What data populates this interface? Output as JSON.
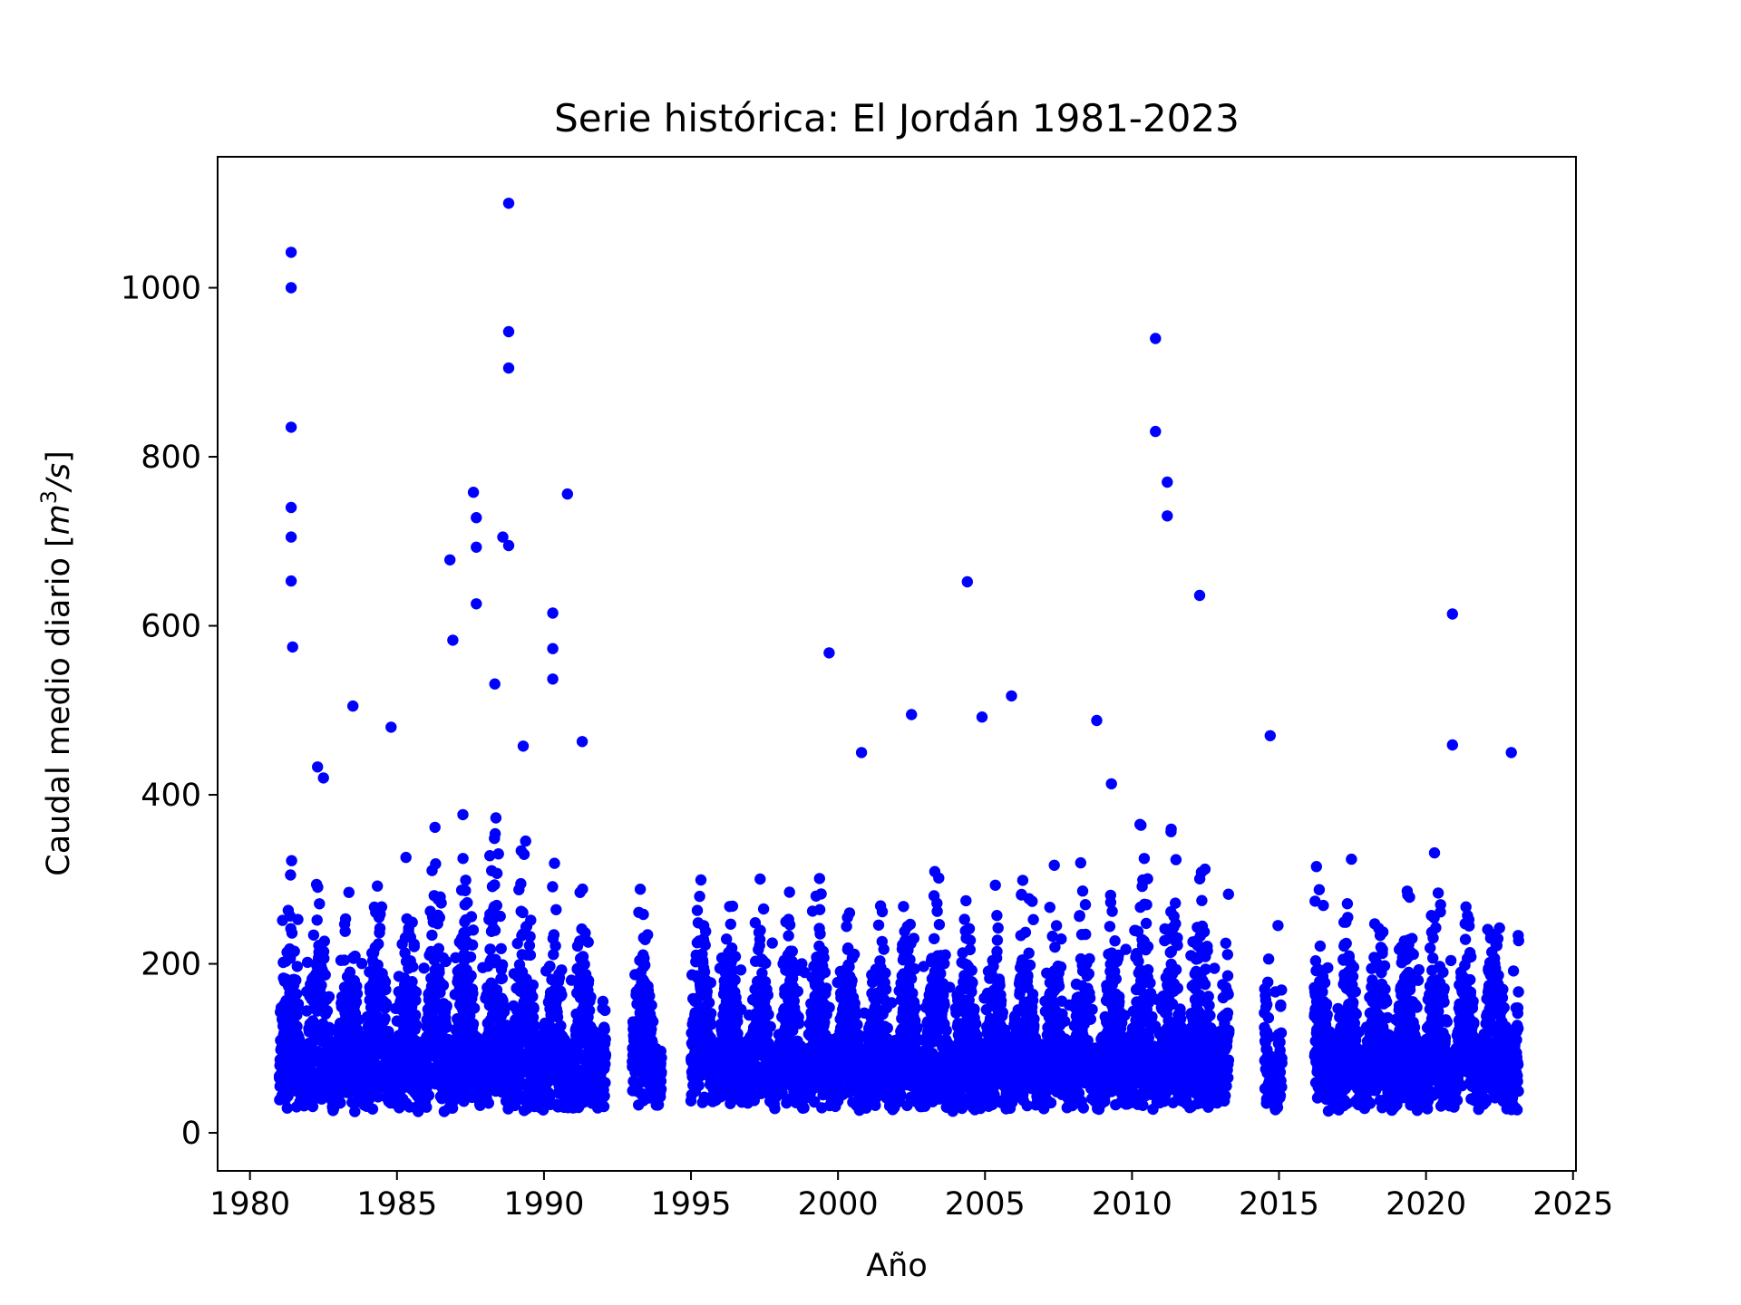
{
  "chart_data": {
    "type": "scatter",
    "title": "Serie histórica: El Jordán 1981-2023",
    "xlabel": "Año",
    "ylabel_prefix": "Caudal medio diario [",
    "ylabel_unit_base": "m",
    "ylabel_unit_exp": "3",
    "ylabel_unit_tail": "/s",
    "ylabel_suffix": "]",
    "xlim": [
      1978.9,
      2025.1
    ],
    "ylim": [
      -45,
      1155
    ],
    "xticks": [
      1980,
      1985,
      1990,
      1995,
      2000,
      2005,
      2010,
      2015,
      2020,
      2025
    ],
    "xtick_labels": [
      "1980",
      "1985",
      "1990",
      "1995",
      "2000",
      "2005",
      "2010",
      "2015",
      "2020",
      "2025"
    ],
    "yticks": [
      0,
      200,
      400,
      600,
      800,
      1000
    ],
    "ytick_labels": [
      "0",
      "200",
      "400",
      "600",
      "800",
      "1000"
    ],
    "grid": false,
    "marker_color": "#0000ff",
    "data_gaps": [
      [
        1992.1,
        1993.0
      ],
      [
        1994.0,
        1995.0
      ],
      [
        2013.3,
        2014.5
      ],
      [
        2015.1,
        2016.2
      ]
    ],
    "peaks": [
      {
        "x": 1981.4,
        "y": 1042
      },
      {
        "x": 1981.4,
        "y": 1000
      },
      {
        "x": 1981.4,
        "y": 835
      },
      {
        "x": 1981.4,
        "y": 740
      },
      {
        "x": 1981.4,
        "y": 705
      },
      {
        "x": 1981.4,
        "y": 653
      },
      {
        "x": 1981.45,
        "y": 575
      },
      {
        "x": 1982.3,
        "y": 433
      },
      {
        "x": 1982.5,
        "y": 420
      },
      {
        "x": 1983.5,
        "y": 505
      },
      {
        "x": 1984.8,
        "y": 480
      },
      {
        "x": 1986.8,
        "y": 678
      },
      {
        "x": 1986.9,
        "y": 583
      },
      {
        "x": 1987.6,
        "y": 758
      },
      {
        "x": 1987.7,
        "y": 728
      },
      {
        "x": 1987.7,
        "y": 693
      },
      {
        "x": 1987.7,
        "y": 626
      },
      {
        "x": 1988.8,
        "y": 1100
      },
      {
        "x": 1988.8,
        "y": 948
      },
      {
        "x": 1988.8,
        "y": 905
      },
      {
        "x": 1988.6,
        "y": 705
      },
      {
        "x": 1988.8,
        "y": 695
      },
      {
        "x": 1990.3,
        "y": 615
      },
      {
        "x": 1990.3,
        "y": 573
      },
      {
        "x": 1990.3,
        "y": 537
      },
      {
        "x": 1990.8,
        "y": 756
      },
      {
        "x": 1991.3,
        "y": 463
      },
      {
        "x": 1999.7,
        "y": 568
      },
      {
        "x": 2000.8,
        "y": 450
      },
      {
        "x": 2002.5,
        "y": 495
      },
      {
        "x": 2004.4,
        "y": 652
      },
      {
        "x": 2004.9,
        "y": 492
      },
      {
        "x": 2005.9,
        "y": 517
      },
      {
        "x": 2008.8,
        "y": 488
      },
      {
        "x": 2009.3,
        "y": 413
      },
      {
        "x": 2010.8,
        "y": 940
      },
      {
        "x": 2010.8,
        "y": 830
      },
      {
        "x": 2011.2,
        "y": 770
      },
      {
        "x": 2011.2,
        "y": 730
      },
      {
        "x": 2012.3,
        "y": 636
      },
      {
        "x": 2014.7,
        "y": 470
      },
      {
        "x": 2020.9,
        "y": 614
      },
      {
        "x": 2020.9,
        "y": 459
      },
      {
        "x": 2022.9,
        "y": 450
      }
    ]
  }
}
